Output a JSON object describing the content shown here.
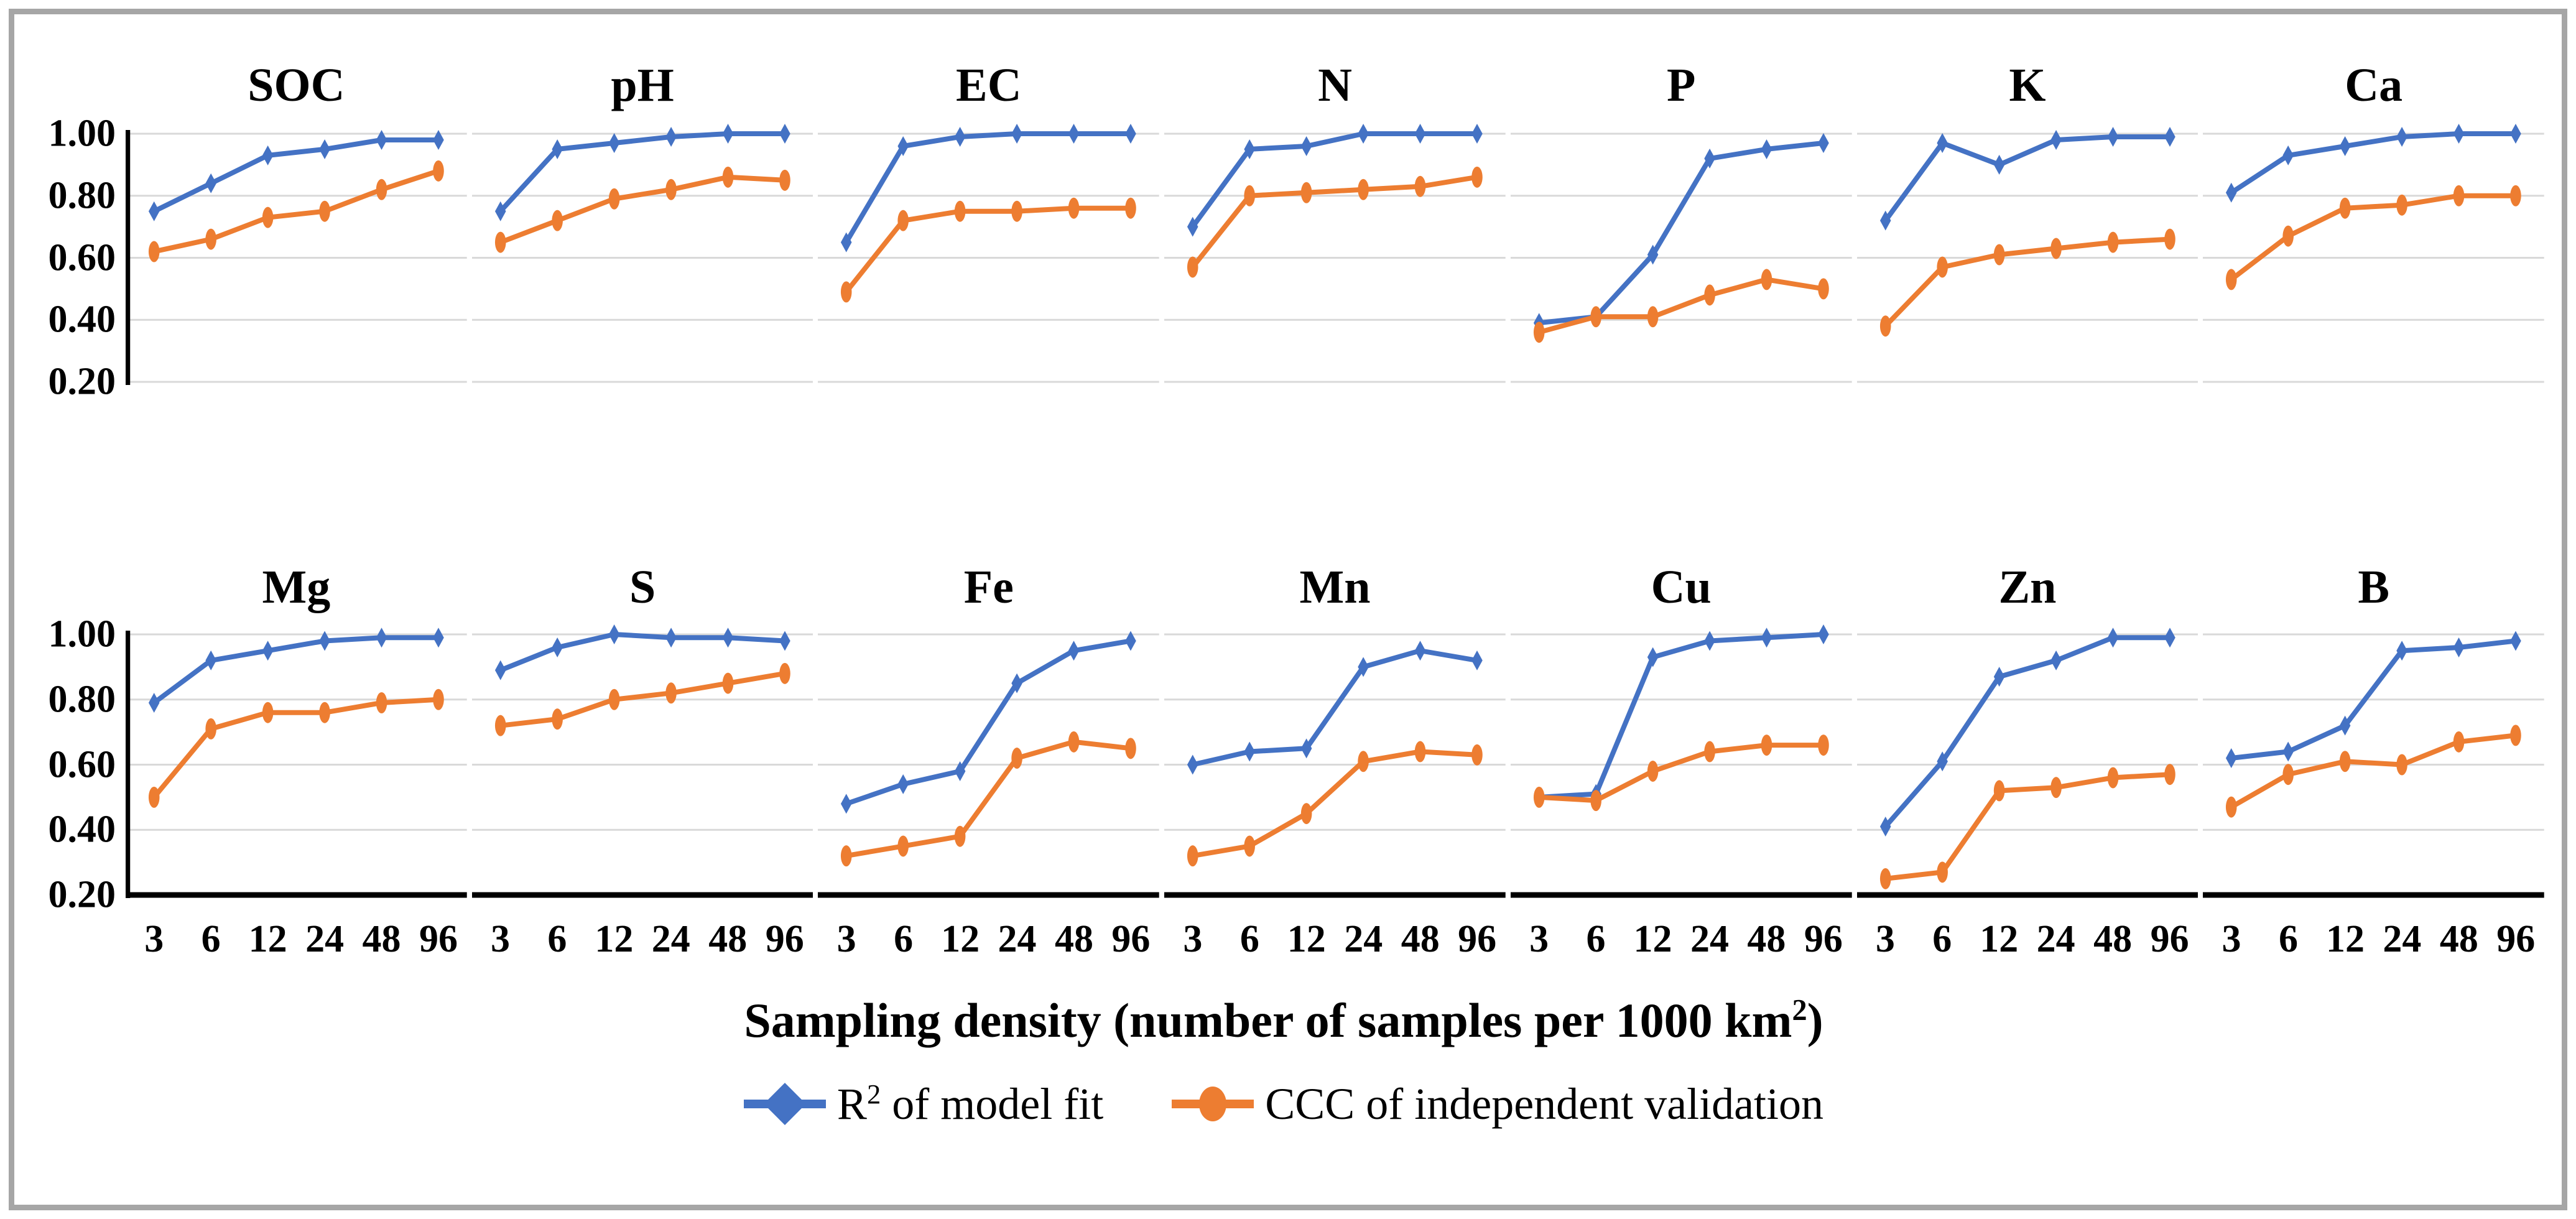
{
  "frame_color": "#A6A6A6",
  "chart_data": {
    "type": "line",
    "x_categories": [
      "3",
      "6",
      "12",
      "24",
      "48",
      "96"
    ],
    "yticks": [
      "1.00",
      "0.80",
      "0.60",
      "0.40",
      "0.20"
    ],
    "ylim": [
      0.2,
      1.0
    ],
    "grid": "horizontal",
    "legend_position": "bottom",
    "xlabel": "Sampling density (number of samples per 1000 km2)",
    "series_names": [
      "R2 of model fit",
      "CCC of independent validation"
    ],
    "colors": {
      "r2": "#4472C4",
      "ccc": "#ED7D31",
      "gridline": "#D9D9D9",
      "axis": "#000000"
    },
    "panels": [
      {
        "title": "SOC",
        "r2": [
          0.75,
          0.84,
          0.93,
          0.95,
          0.98,
          0.98
        ],
        "ccc": [
          0.62,
          0.66,
          0.73,
          0.75,
          0.82,
          0.88
        ]
      },
      {
        "title": "pH",
        "r2": [
          0.75,
          0.95,
          0.97,
          0.99,
          1.0,
          1.0
        ],
        "ccc": [
          0.65,
          0.72,
          0.79,
          0.82,
          0.86,
          0.85
        ]
      },
      {
        "title": "EC",
        "r2": [
          0.65,
          0.96,
          0.99,
          1.0,
          1.0,
          1.0
        ],
        "ccc": [
          0.49,
          0.72,
          0.75,
          0.75,
          0.76,
          0.76
        ]
      },
      {
        "title": "N",
        "r2": [
          0.7,
          0.95,
          0.96,
          1.0,
          1.0,
          1.0
        ],
        "ccc": [
          0.57,
          0.8,
          0.81,
          0.82,
          0.83,
          0.86
        ]
      },
      {
        "title": "P",
        "r2": [
          0.39,
          0.41,
          0.61,
          0.92,
          0.95,
          0.97
        ],
        "ccc": [
          0.36,
          0.41,
          0.41,
          0.48,
          0.53,
          0.5
        ]
      },
      {
        "title": "K",
        "r2": [
          0.72,
          0.97,
          0.9,
          0.98,
          0.99,
          0.99
        ],
        "ccc": [
          0.38,
          0.57,
          0.61,
          0.63,
          0.65,
          0.66
        ]
      },
      {
        "title": "Ca",
        "r2": [
          0.81,
          0.93,
          0.96,
          0.99,
          1.0,
          1.0
        ],
        "ccc": [
          0.53,
          0.67,
          0.76,
          0.77,
          0.8,
          0.8
        ]
      },
      {
        "title": "Mg",
        "r2": [
          0.79,
          0.92,
          0.95,
          0.98,
          0.99,
          0.99
        ],
        "ccc": [
          0.5,
          0.71,
          0.76,
          0.76,
          0.79,
          0.8
        ]
      },
      {
        "title": "S",
        "r2": [
          0.89,
          0.96,
          1.0,
          0.99,
          0.99,
          0.98
        ],
        "ccc": [
          0.72,
          0.74,
          0.8,
          0.82,
          0.85,
          0.88
        ]
      },
      {
        "title": "Fe",
        "r2": [
          0.48,
          0.54,
          0.58,
          0.85,
          0.95,
          0.98
        ],
        "ccc": [
          0.32,
          0.35,
          0.38,
          0.62,
          0.67,
          0.65
        ]
      },
      {
        "title": "Mn",
        "r2": [
          0.6,
          0.64,
          0.65,
          0.9,
          0.95,
          0.92
        ],
        "ccc": [
          0.32,
          0.35,
          0.45,
          0.61,
          0.64,
          0.63
        ]
      },
      {
        "title": "Cu",
        "r2": [
          0.5,
          0.51,
          0.93,
          0.98,
          0.99,
          1.0
        ],
        "ccc": [
          0.5,
          0.49,
          0.58,
          0.64,
          0.66,
          0.66
        ]
      },
      {
        "title": "Zn",
        "r2": [
          0.41,
          0.61,
          0.87,
          0.92,
          0.99,
          0.99
        ],
        "ccc": [
          0.25,
          0.27,
          0.52,
          0.53,
          0.56,
          0.57
        ]
      },
      {
        "title": "B",
        "r2": [
          0.62,
          0.64,
          0.72,
          0.95,
          0.96,
          0.98
        ],
        "ccc": [
          0.47,
          0.57,
          0.61,
          0.6,
          0.67,
          0.69
        ]
      }
    ]
  },
  "axis_title": {
    "prefix": "Sampling density (number of samples per 1000 km",
    "sup": "2",
    "suffix": ")"
  },
  "legend": {
    "r2": {
      "prefix": "R",
      "sup": "2",
      "rest": " of model fit"
    },
    "ccc": "CCC of independent validation"
  }
}
